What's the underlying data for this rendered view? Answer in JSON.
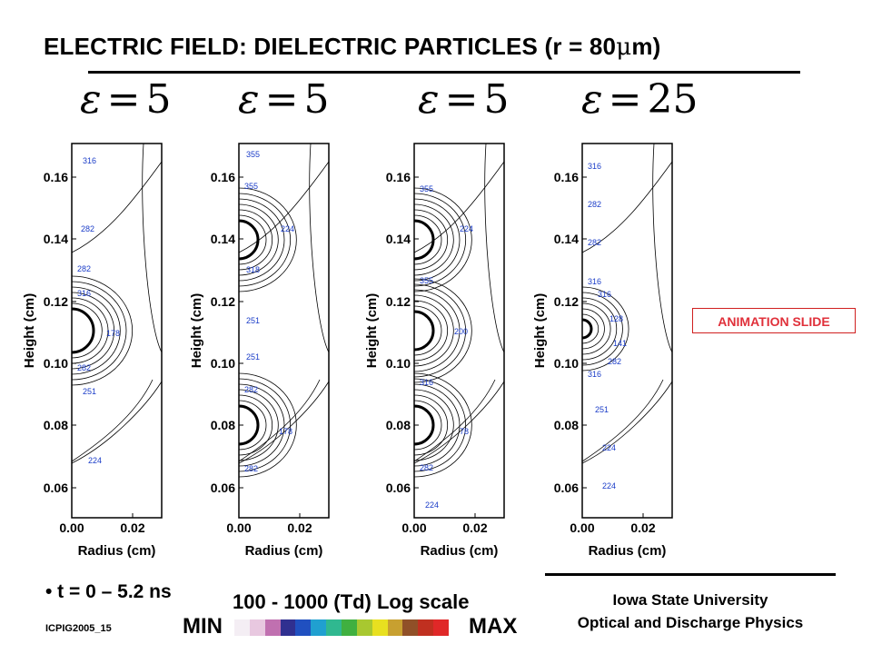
{
  "slide": {
    "title_main": "ELECTRIC FIELD: DIELECTRIC PARTICLES  (r = 80",
    "title_mu": "μ",
    "title_end": "m)",
    "panels": [
      {
        "eps_symbol": "ε",
        "eq": "=",
        "value": "5",
        "contour_labels": [
          "316",
          "282",
          "282",
          "316",
          "178",
          "282",
          "251",
          "224"
        ]
      },
      {
        "eps_symbol": "ε",
        "eq": "=",
        "value": "5",
        "contour_labels": [
          "355",
          "355",
          "224",
          "318",
          "251",
          "251",
          "282",
          "178",
          "282"
        ]
      },
      {
        "eps_symbol": "ε",
        "eq": "=",
        "value": "5",
        "contour_labels": [
          "355",
          "224",
          "355",
          "200",
          "316",
          "78",
          "282",
          "224"
        ]
      },
      {
        "eps_symbol": "ε",
        "eq": "=",
        "value": "25",
        "contour_labels": [
          "316",
          "282",
          "282",
          "316",
          "316",
          "128",
          "141",
          "282",
          "316",
          "251",
          "224",
          "224"
        ]
      }
    ],
    "y_ticks": [
      "0.16",
      "0.14",
      "0.12",
      "0.10",
      "0.08",
      "0.06"
    ],
    "x_ticks": [
      "0.00",
      "0.02"
    ],
    "x_label": "Radius (cm)",
    "y_label": "Height (cm)",
    "animation_label": "ANIMATION SLIDE",
    "time_label": "• t = 0 – 5.2 ns",
    "range_label": "100 - 1000 (Td)  Log scale",
    "min_label": "MIN",
    "max_label": "MAX",
    "colorscale": [
      "#f4eef4",
      "#e8c8e0",
      "#c070b0",
      "#303090",
      "#2050c0",
      "#20a0d0",
      "#30b890",
      "#40b040",
      "#a8c830",
      "#e8e020",
      "#c8a030",
      "#905028",
      "#c03020",
      "#e02828"
    ],
    "footer_id": "ICPIG2005_15",
    "affiliation_1": "Iowa State University",
    "affiliation_2": "Optical and Discharge Physics"
  }
}
